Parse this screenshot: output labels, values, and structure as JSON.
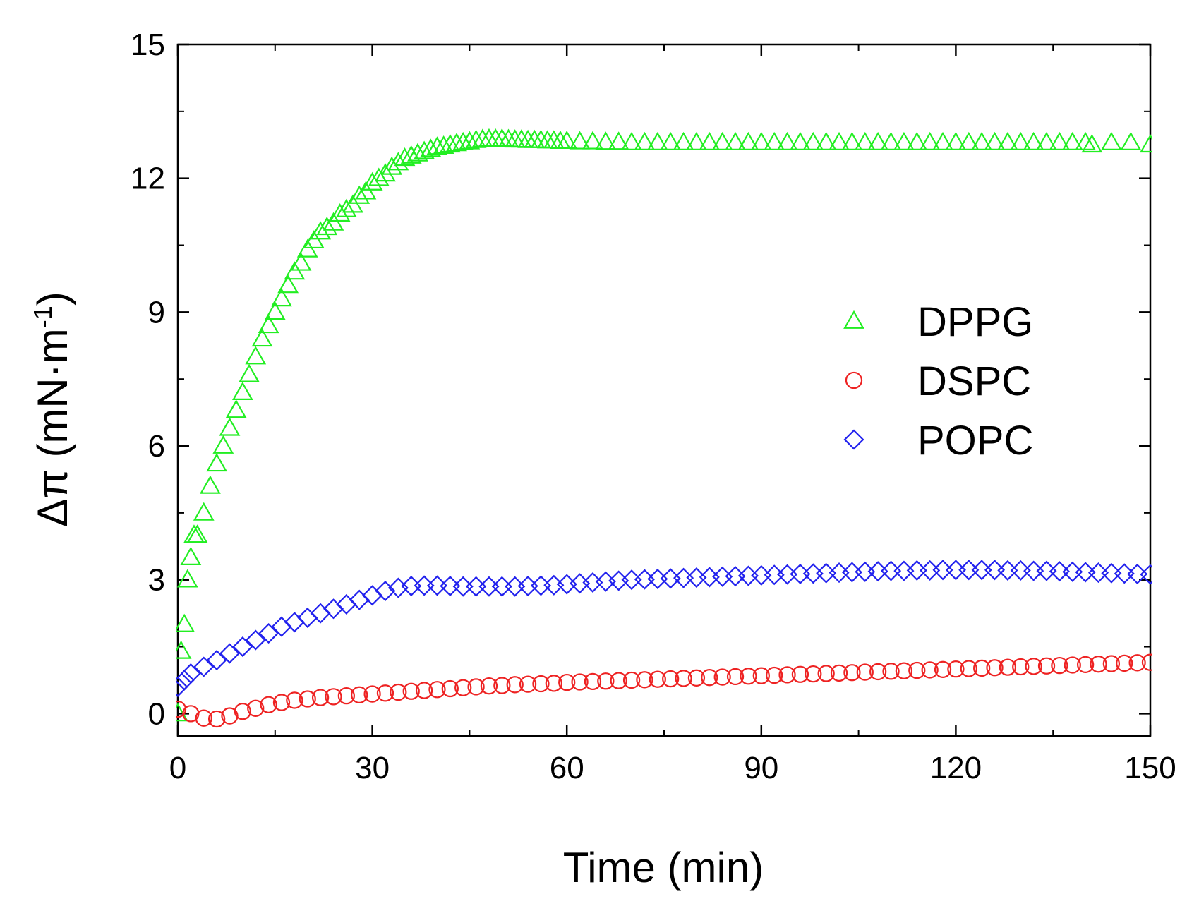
{
  "chart_data": {
    "type": "scatter",
    "title": "",
    "xlabel": "Time (min)",
    "ylabel_main": "Δπ (mN·m",
    "ylabel_sup": "-1",
    "ylabel_close": ")",
    "xlim": [
      0,
      150
    ],
    "ylim": [
      -0.5,
      15
    ],
    "x_ticks": [
      0,
      30,
      60,
      90,
      120,
      150
    ],
    "x_tick_labels": [
      "0",
      "30",
      "60",
      "90",
      "120",
      "150"
    ],
    "y_ticks": [
      0,
      3,
      6,
      9,
      12,
      15
    ],
    "y_tick_labels": [
      "0",
      "3",
      "6",
      "9",
      "12",
      "15"
    ],
    "grid": false,
    "legend_position": "right-center",
    "series": [
      {
        "name": "DPPG",
        "marker": "triangle",
        "color": "#22ee22",
        "x": [
          0,
          0.5,
          1,
          1.5,
          2,
          2.5,
          3,
          4,
          5,
          6,
          7,
          8,
          9,
          10,
          11,
          12,
          13,
          14,
          15,
          16,
          17,
          18,
          19,
          20,
          21,
          22,
          23,
          24,
          25,
          26,
          27,
          28,
          29,
          30,
          31,
          32,
          33,
          34,
          35,
          36,
          37,
          38,
          39,
          40,
          41,
          42,
          43,
          44,
          45,
          46,
          47,
          48,
          49,
          50,
          51,
          52,
          53,
          54,
          55,
          56,
          57,
          58,
          59,
          60,
          62,
          64,
          66,
          68,
          70,
          72,
          74,
          76,
          78,
          80,
          82,
          84,
          86,
          88,
          90,
          92,
          94,
          96,
          98,
          100,
          102,
          104,
          106,
          108,
          110,
          112,
          114,
          116,
          118,
          120,
          122,
          124,
          126,
          128,
          130,
          132,
          134,
          136,
          138,
          140,
          141,
          144,
          147,
          150
        ],
        "y": [
          0,
          1.4,
          2.0,
          3.0,
          3.5,
          4.0,
          4.0,
          4.5,
          5.1,
          5.6,
          6.0,
          6.4,
          6.8,
          7.2,
          7.6,
          8.0,
          8.4,
          8.7,
          9.0,
          9.3,
          9.6,
          9.9,
          10.1,
          10.4,
          10.6,
          10.8,
          10.9,
          11.0,
          11.2,
          11.3,
          11.4,
          11.6,
          11.7,
          11.9,
          12.0,
          12.1,
          12.25,
          12.35,
          12.45,
          12.5,
          12.55,
          12.6,
          12.65,
          12.7,
          12.72,
          12.75,
          12.78,
          12.8,
          12.82,
          12.85,
          12.87,
          12.88,
          12.88,
          12.88,
          12.87,
          12.86,
          12.86,
          12.85,
          12.85,
          12.85,
          12.84,
          12.84,
          12.83,
          12.83,
          12.82,
          12.82,
          12.81,
          12.81,
          12.8,
          12.8,
          12.8,
          12.8,
          12.8,
          12.8,
          12.8,
          12.8,
          12.8,
          12.8,
          12.8,
          12.8,
          12.8,
          12.8,
          12.8,
          12.8,
          12.8,
          12.8,
          12.8,
          12.8,
          12.8,
          12.8,
          12.8,
          12.8,
          12.8,
          12.8,
          12.8,
          12.8,
          12.8,
          12.8,
          12.8,
          12.8,
          12.8,
          12.8,
          12.8,
          12.8,
          12.75,
          12.8,
          12.8,
          12.75
        ]
      },
      {
        "name": "DSPC",
        "marker": "circle",
        "color": "#ee2222",
        "x": [
          0,
          2,
          4,
          6,
          8,
          10,
          12,
          14,
          16,
          18,
          20,
          22,
          24,
          26,
          28,
          30,
          32,
          34,
          36,
          38,
          40,
          42,
          44,
          46,
          48,
          50,
          52,
          54,
          56,
          58,
          60,
          62,
          64,
          66,
          68,
          70,
          72,
          74,
          76,
          78,
          80,
          82,
          84,
          86,
          88,
          90,
          92,
          94,
          96,
          98,
          100,
          102,
          104,
          106,
          108,
          110,
          112,
          114,
          116,
          118,
          120,
          122,
          124,
          126,
          128,
          130,
          132,
          134,
          136,
          138,
          140,
          142,
          144,
          146,
          148,
          150
        ],
        "y": [
          0.1,
          0.0,
          -0.1,
          -0.12,
          -0.05,
          0.05,
          0.12,
          0.2,
          0.25,
          0.3,
          0.33,
          0.36,
          0.38,
          0.4,
          0.42,
          0.44,
          0.46,
          0.48,
          0.5,
          0.52,
          0.54,
          0.56,
          0.58,
          0.6,
          0.62,
          0.63,
          0.65,
          0.66,
          0.67,
          0.68,
          0.7,
          0.71,
          0.72,
          0.73,
          0.74,
          0.75,
          0.76,
          0.77,
          0.78,
          0.79,
          0.8,
          0.81,
          0.82,
          0.83,
          0.84,
          0.85,
          0.86,
          0.87,
          0.88,
          0.89,
          0.9,
          0.91,
          0.92,
          0.93,
          0.94,
          0.95,
          0.96,
          0.97,
          0.98,
          0.99,
          1.0,
          1.01,
          1.02,
          1.03,
          1.04,
          1.05,
          1.06,
          1.07,
          1.08,
          1.09,
          1.1,
          1.11,
          1.12,
          1.13,
          1.14,
          1.15
        ]
      },
      {
        "name": "POPC",
        "marker": "diamond",
        "color": "#2222ee",
        "x": [
          0,
          1,
          2,
          4,
          6,
          8,
          10,
          12,
          14,
          16,
          18,
          20,
          22,
          24,
          26,
          28,
          30,
          32,
          34,
          36,
          38,
          40,
          42,
          44,
          46,
          48,
          50,
          52,
          54,
          56,
          58,
          60,
          62,
          64,
          66,
          68,
          70,
          72,
          74,
          76,
          78,
          80,
          82,
          84,
          86,
          88,
          90,
          92,
          94,
          96,
          98,
          100,
          102,
          104,
          106,
          108,
          110,
          112,
          114,
          116,
          118,
          120,
          122,
          124,
          126,
          128,
          130,
          132,
          134,
          136,
          138,
          140,
          142,
          144,
          146,
          148,
          150
        ],
        "y": [
          0.6,
          0.75,
          0.9,
          1.05,
          1.2,
          1.35,
          1.5,
          1.65,
          1.8,
          1.95,
          2.05,
          2.15,
          2.25,
          2.35,
          2.45,
          2.55,
          2.65,
          2.75,
          2.82,
          2.86,
          2.87,
          2.87,
          2.86,
          2.85,
          2.85,
          2.85,
          2.85,
          2.85,
          2.86,
          2.87,
          2.88,
          2.9,
          2.92,
          2.94,
          2.96,
          2.98,
          3.0,
          3.01,
          3.02,
          3.03,
          3.04,
          3.05,
          3.06,
          3.07,
          3.08,
          3.09,
          3.1,
          3.11,
          3.12,
          3.13,
          3.14,
          3.15,
          3.16,
          3.17,
          3.18,
          3.19,
          3.2,
          3.2,
          3.21,
          3.21,
          3.22,
          3.22,
          3.22,
          3.22,
          3.22,
          3.21,
          3.21,
          3.2,
          3.2,
          3.19,
          3.18,
          3.17,
          3.16,
          3.15,
          3.14,
          3.13,
          3.12
        ]
      }
    ]
  }
}
